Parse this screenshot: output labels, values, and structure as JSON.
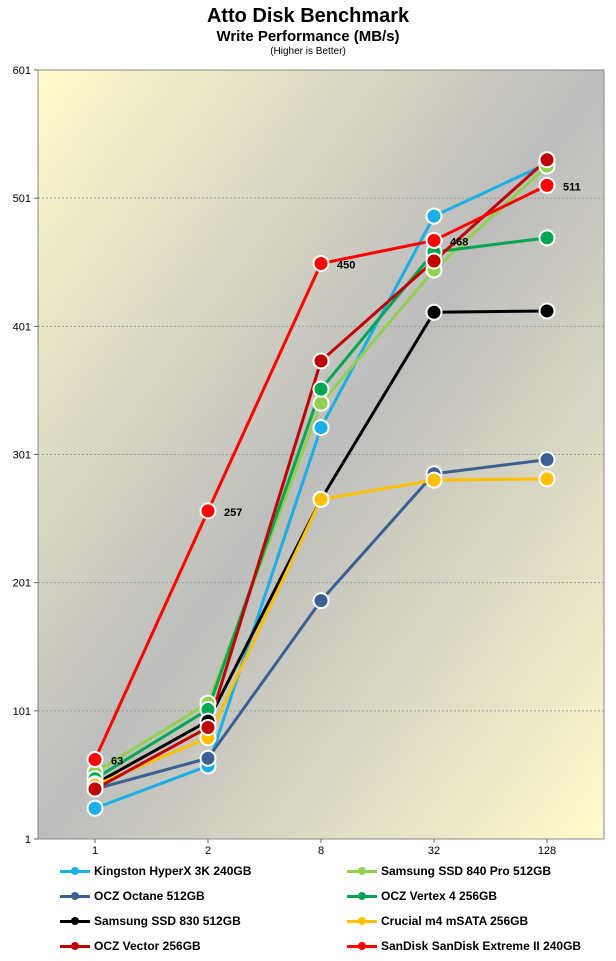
{
  "chart_data": {
    "type": "line",
    "title": "Atto Disk Benchmark",
    "subtitle": "Write Performance (MB/s)",
    "note": "(Higher is Better)",
    "x": [
      "1",
      "2",
      "8",
      "32",
      "128"
    ],
    "ylim": [
      1,
      601
    ],
    "yticks": [
      "1",
      "101",
      "201",
      "301",
      "401",
      "501",
      "601"
    ],
    "grid": true,
    "legend_position": "bottom",
    "series": [
      {
        "name": "Kingston HyperX 3K 240GB",
        "color": "#1aafe6",
        "values": [
          25,
          58,
          322,
          487,
          528
        ]
      },
      {
        "name": "Samsung SSD 840 Pro 512GB",
        "color": "#92d050",
        "values": [
          53,
          107,
          341,
          445,
          526
        ]
      },
      {
        "name": "OCZ Octane 512GB",
        "color": "#3c5f94",
        "values": [
          40,
          64,
          187,
          286,
          297
        ]
      },
      {
        "name": "OCZ Vertex 4 256GB",
        "color": "#00a651",
        "values": [
          48,
          102,
          352,
          459,
          470
        ]
      },
      {
        "name": "Samsung SSD 830 512GB",
        "color": "#000000",
        "values": [
          44,
          93,
          266,
          412,
          413
        ]
      },
      {
        "name": "Crucial m4 mSATA 256GB",
        "color": "#ffc000",
        "values": [
          43,
          80,
          266,
          281,
          282
        ]
      },
      {
        "name": "OCZ Vector 256GB",
        "color": "#c00000",
        "values": [
          40,
          88,
          374,
          452,
          531
        ]
      },
      {
        "name": "SanDisk SanDisk Extreme II 240GB",
        "color": "#ff0000",
        "values": [
          63,
          257,
          450,
          468,
          511
        ]
      }
    ],
    "data_labels": [
      {
        "series": 7,
        "index": 0,
        "text": "63"
      },
      {
        "series": 7,
        "index": 1,
        "text": "257"
      },
      {
        "series": 7,
        "index": 2,
        "text": "450"
      },
      {
        "series": 7,
        "index": 3,
        "text": "468"
      },
      {
        "series": 7,
        "index": 4,
        "text": "511"
      }
    ]
  }
}
